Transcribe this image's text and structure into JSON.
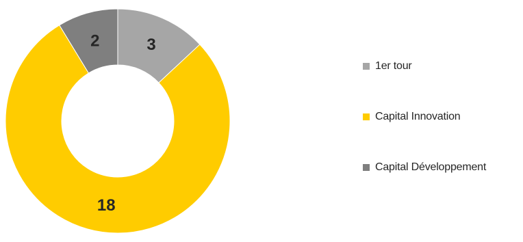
{
  "chart_data": {
    "type": "pie",
    "variant": "donut",
    "categories": [
      "1er tour",
      "Capital Innovation",
      "Capital Développement"
    ],
    "values": [
      3,
      18,
      2
    ],
    "data_labels": [
      "3",
      "18",
      "2"
    ],
    "colors": [
      "#a6a6a6",
      "#ffcc00",
      "#7f7f7f"
    ],
    "legend": {
      "position": "right",
      "entries": [
        "1er tour",
        "Capital Innovation",
        "Capital Développement"
      ]
    }
  }
}
